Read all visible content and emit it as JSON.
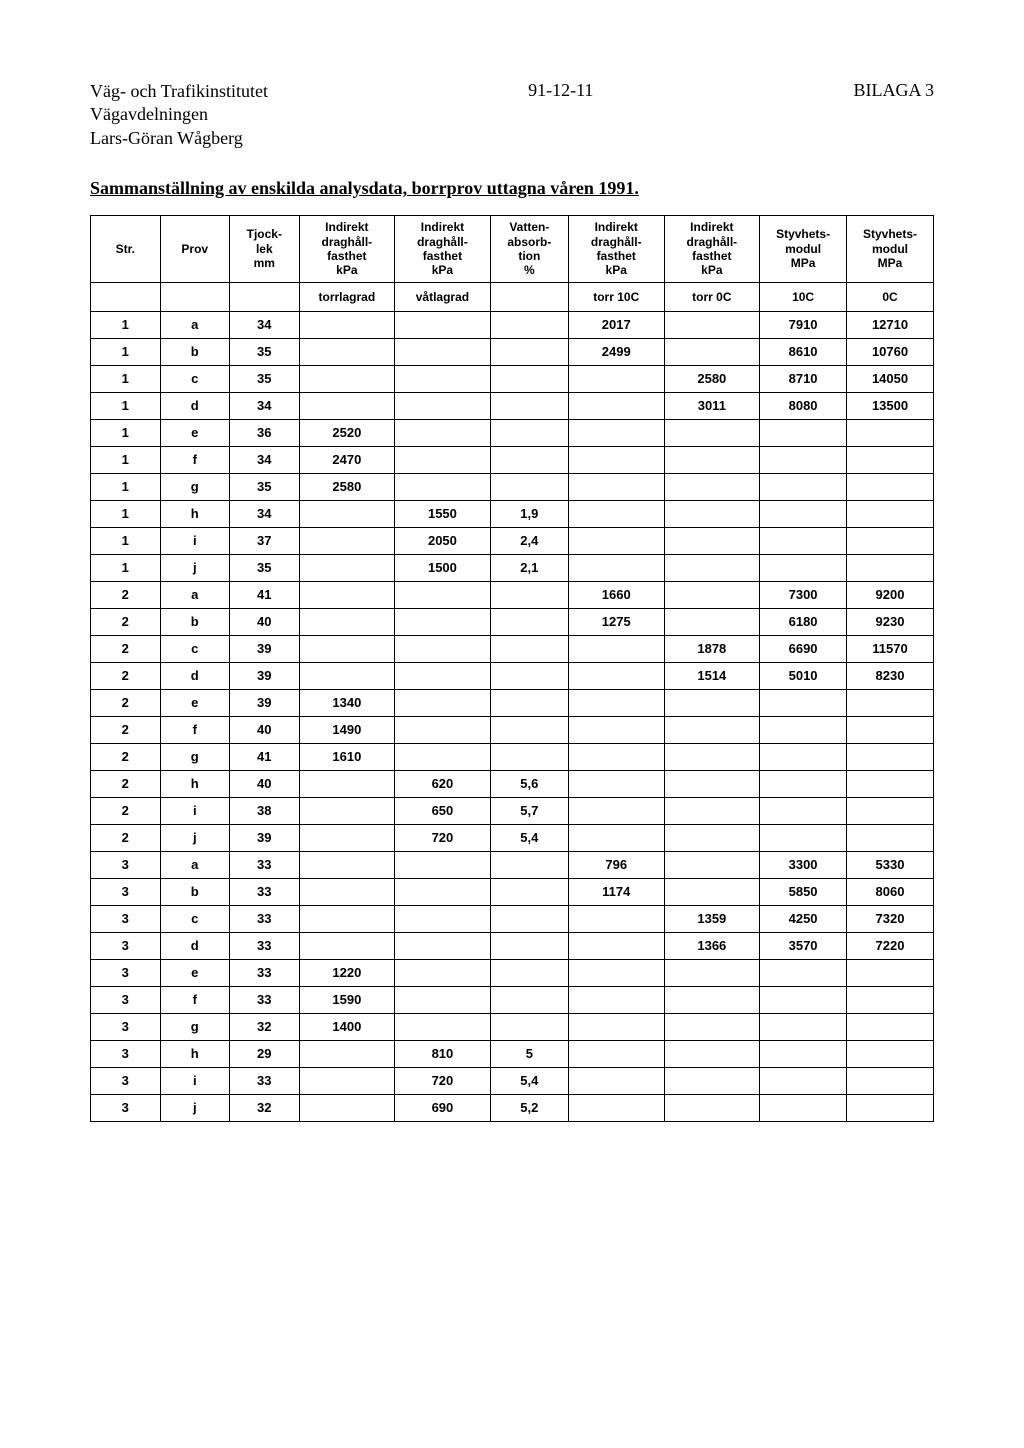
{
  "header": {
    "org": "Väg- och Trafikinstitutet",
    "dept": "Vägavdelningen",
    "author": "Lars-Göran Wågberg",
    "date": "91-12-11",
    "appendix": "BILAGA 3"
  },
  "section_title": "Sammanställning av enskilda analysdata, borrprov uttagna våren 1991.",
  "columns": [
    "Str.",
    "Prov",
    "Tjock-\nlek\nmm",
    "Indirekt\ndraghåll-\nfasthet\nkPa",
    "Indirekt\ndraghåll-\nfasthet\nkPa",
    "Vatten-\nabsorb-\ntion\n%",
    "Indirekt\ndraghåll-\nfasthet\nkPa",
    "Indirekt\ndraghåll-\nfasthet\nkPa",
    "Styvhets-\nmodul\nMPa",
    "Styvhets-\nmodul\nMPa"
  ],
  "subheader": [
    "",
    "",
    "",
    "torrlagrad",
    "våtlagrad",
    "",
    "torr 10C",
    "torr 0C",
    "10C",
    "0C"
  ],
  "rows": [
    [
      "1",
      "a",
      "34",
      "",
      "",
      "",
      "2017",
      "",
      "7910",
      "12710"
    ],
    [
      "1",
      "b",
      "35",
      "",
      "",
      "",
      "2499",
      "",
      "8610",
      "10760"
    ],
    [
      "1",
      "c",
      "35",
      "",
      "",
      "",
      "",
      "2580",
      "8710",
      "14050"
    ],
    [
      "1",
      "d",
      "34",
      "",
      "",
      "",
      "",
      "3011",
      "8080",
      "13500"
    ],
    [
      "1",
      "e",
      "36",
      "2520",
      "",
      "",
      "",
      "",
      "",
      ""
    ],
    [
      "1",
      "f",
      "34",
      "2470",
      "",
      "",
      "",
      "",
      "",
      ""
    ],
    [
      "1",
      "g",
      "35",
      "2580",
      "",
      "",
      "",
      "",
      "",
      ""
    ],
    [
      "1",
      "h",
      "34",
      "",
      "1550",
      "1,9",
      "",
      "",
      "",
      ""
    ],
    [
      "1",
      "i",
      "37",
      "",
      "2050",
      "2,4",
      "",
      "",
      "",
      ""
    ],
    [
      "1",
      "j",
      "35",
      "",
      "1500",
      "2,1",
      "",
      "",
      "",
      ""
    ],
    [
      "2",
      "a",
      "41",
      "",
      "",
      "",
      "1660",
      "",
      "7300",
      "9200"
    ],
    [
      "2",
      "b",
      "40",
      "",
      "",
      "",
      "1275",
      "",
      "6180",
      "9230"
    ],
    [
      "2",
      "c",
      "39",
      "",
      "",
      "",
      "",
      "1878",
      "6690",
      "11570"
    ],
    [
      "2",
      "d",
      "39",
      "",
      "",
      "",
      "",
      "1514",
      "5010",
      "8230"
    ],
    [
      "2",
      "e",
      "39",
      "1340",
      "",
      "",
      "",
      "",
      "",
      ""
    ],
    [
      "2",
      "f",
      "40",
      "1490",
      "",
      "",
      "",
      "",
      "",
      ""
    ],
    [
      "2",
      "g",
      "41",
      "1610",
      "",
      "",
      "",
      "",
      "",
      ""
    ],
    [
      "2",
      "h",
      "40",
      "",
      "620",
      "5,6",
      "",
      "",
      "",
      ""
    ],
    [
      "2",
      "i",
      "38",
      "",
      "650",
      "5,7",
      "",
      "",
      "",
      ""
    ],
    [
      "2",
      "j",
      "39",
      "",
      "720",
      "5,4",
      "",
      "",
      "",
      ""
    ],
    [
      "3",
      "a",
      "33",
      "",
      "",
      "",
      "796",
      "",
      "3300",
      "5330"
    ],
    [
      "3",
      "b",
      "33",
      "",
      "",
      "",
      "1174",
      "",
      "5850",
      "8060"
    ],
    [
      "3",
      "c",
      "33",
      "",
      "",
      "",
      "",
      "1359",
      "4250",
      "7320"
    ],
    [
      "3",
      "d",
      "33",
      "",
      "",
      "",
      "",
      "1366",
      "3570",
      "7220"
    ],
    [
      "3",
      "e",
      "33",
      "1220",
      "",
      "",
      "",
      "",
      "",
      ""
    ],
    [
      "3",
      "f",
      "33",
      "1590",
      "",
      "",
      "",
      "",
      "",
      ""
    ],
    [
      "3",
      "g",
      "32",
      "1400",
      "",
      "",
      "",
      "",
      "",
      ""
    ],
    [
      "3",
      "h",
      "29",
      "",
      "810",
      "5",
      "",
      "",
      "",
      ""
    ],
    [
      "3",
      "i",
      "33",
      "",
      "720",
      "5,4",
      "",
      "",
      "",
      ""
    ],
    [
      "3",
      "j",
      "32",
      "",
      "690",
      "5,2",
      "",
      "",
      "",
      ""
    ]
  ]
}
